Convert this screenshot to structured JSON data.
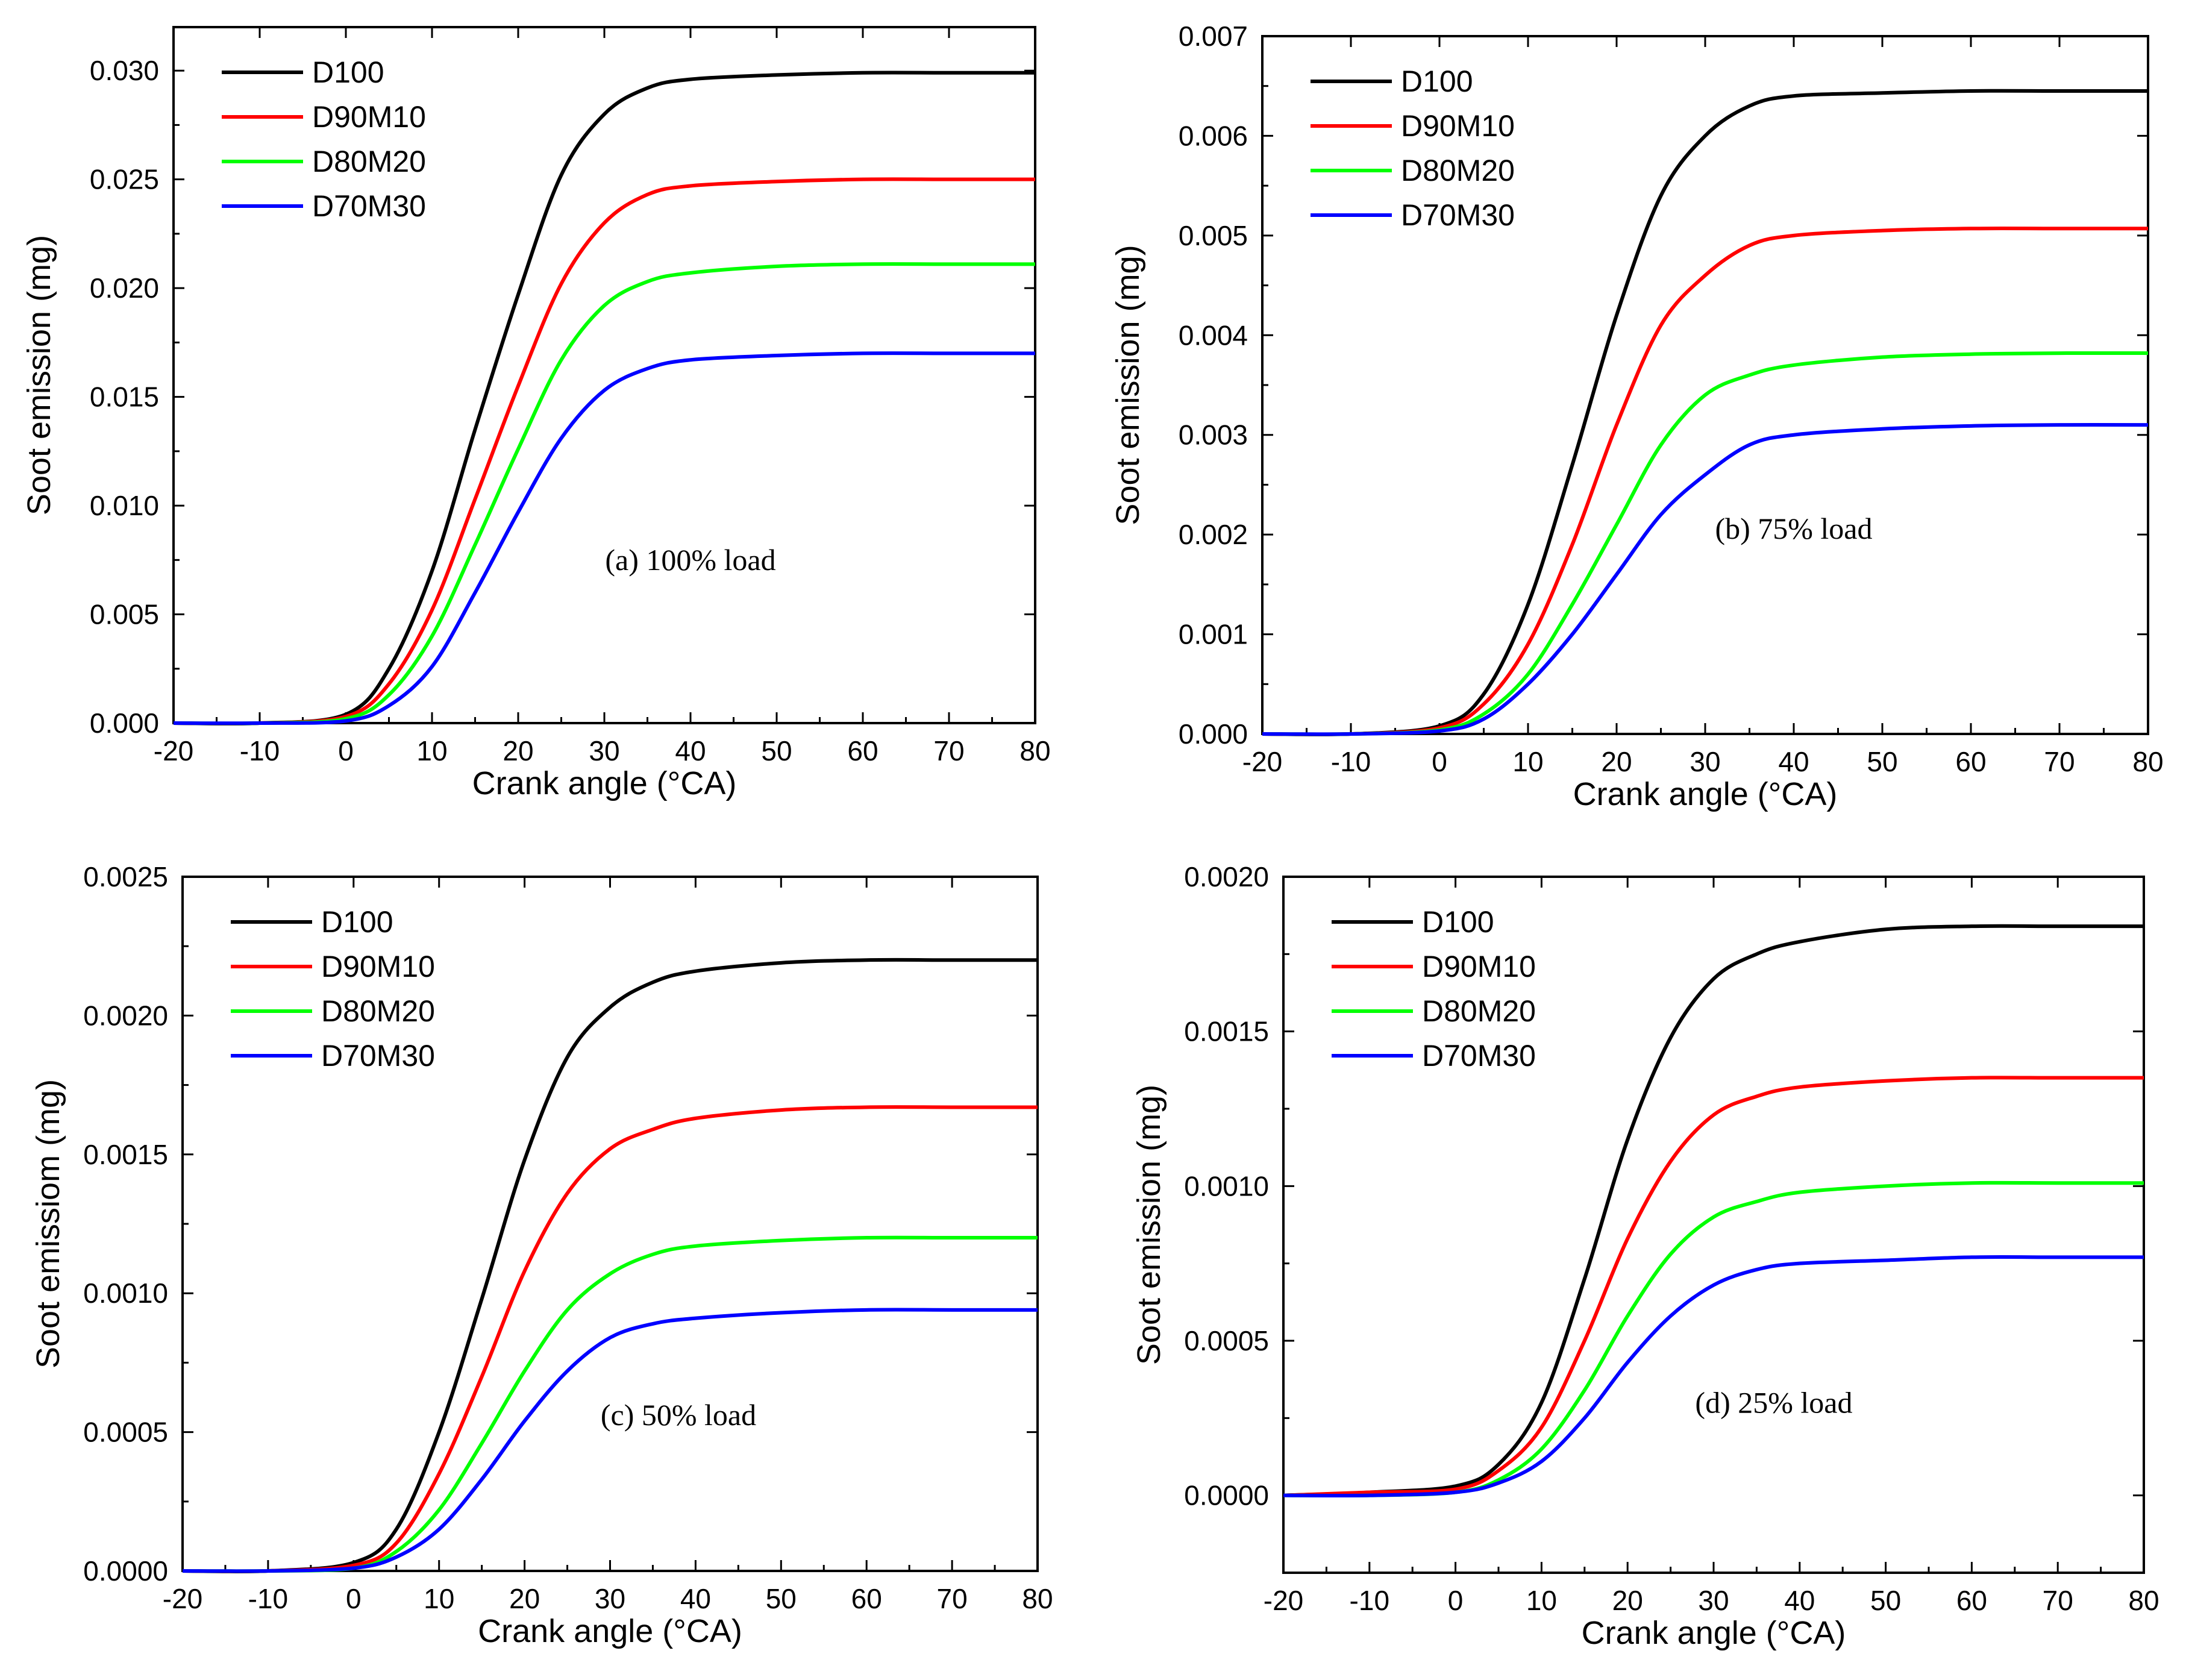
{
  "figure": {
    "panels": [
      {
        "id": "a",
        "annotation": "(a) 100% load",
        "xlabel": "Crank angle (°CA)",
        "ylabel": "Soot emission (mg)",
        "xlim": [
          -20,
          80
        ],
        "ylim": [
          0,
          0.032
        ],
        "xticks": [
          -20,
          -10,
          0,
          10,
          20,
          30,
          40,
          50,
          60,
          70,
          80
        ],
        "yticks": [
          0.0,
          0.005,
          0.01,
          0.015,
          0.02,
          0.025,
          0.03
        ],
        "ytick_decimals": 3,
        "series_final": [
          0.0299,
          0.025,
          0.0211,
          0.017
        ]
      },
      {
        "id": "b",
        "annotation": "(b) 75% load",
        "xlabel": "Crank angle (°CA)",
        "ylabel": "Soot emission (mg)",
        "xlim": [
          -20,
          80
        ],
        "ylim": [
          0,
          0.007
        ],
        "xticks": [
          -20,
          -10,
          0,
          10,
          20,
          30,
          40,
          50,
          60,
          70,
          80
        ],
        "yticks": [
          0.0,
          0.001,
          0.002,
          0.003,
          0.004,
          0.005,
          0.006,
          0.007
        ],
        "ytick_decimals": 3,
        "series_final": [
          0.00645,
          0.00507,
          0.00382,
          0.0031
        ]
      },
      {
        "id": "c",
        "annotation": "(c) 50% load",
        "xlabel": "Crank angle (°CA)",
        "ylabel": "Soot emissiom (mg)",
        "xlim": [
          -20,
          80
        ],
        "ylim": [
          0,
          0.0025
        ],
        "xticks": [
          -20,
          -10,
          0,
          10,
          20,
          30,
          40,
          50,
          60,
          70,
          80
        ],
        "yticks": [
          0.0,
          0.0005,
          0.001,
          0.0015,
          0.002,
          0.0025
        ],
        "ytick_decimals": 4,
        "series_final": [
          0.0022,
          0.00167,
          0.0012,
          0.00094
        ]
      },
      {
        "id": "d",
        "annotation": "(d) 25% load",
        "xlabel": "Crank angle (°CA)",
        "ylabel": "Soot emission (mg)",
        "xlim": [
          -20,
          80
        ],
        "ylim": [
          -0.00025,
          0.002
        ],
        "xticks": [
          -20,
          -10,
          0,
          10,
          20,
          30,
          40,
          50,
          60,
          70,
          80
        ],
        "yticks": [
          0.0,
          0.0005,
          0.001,
          0.0015,
          0.002
        ],
        "ytick_decimals": 4,
        "series_final": [
          0.00184,
          0.00135,
          0.00101,
          0.00077
        ]
      }
    ]
  },
  "chart_data": [
    {
      "type": "line",
      "x": [
        -20,
        -10,
        0,
        5,
        10,
        15,
        20,
        25,
        30,
        35,
        40,
        50,
        60,
        70,
        80
      ],
      "xlabel": "Crank angle (°CA)",
      "ylabel": "Soot emission (mg)",
      "xlim": [
        -20,
        80
      ],
      "ylim": [
        0,
        0.032
      ],
      "annotation": "(a) 100% load",
      "legend_position": "top-left",
      "series": [
        {
          "name": "D100",
          "color": "#000000",
          "values": [
            0,
            0,
            0.0004,
            0.0025,
            0.007,
            0.0135,
            0.0197,
            0.0252,
            0.028,
            0.0292,
            0.0296,
            0.0298,
            0.0299,
            0.0299,
            0.0299
          ]
        },
        {
          "name": "D90M10",
          "color": "#ff0000",
          "values": [
            0,
            0,
            0.0003,
            0.0018,
            0.0052,
            0.0103,
            0.0155,
            0.0202,
            0.023,
            0.0243,
            0.0247,
            0.0249,
            0.025,
            0.025,
            0.025
          ]
        },
        {
          "name": "D80M20",
          "color": "#00ff00",
          "values": [
            0,
            0,
            0.0002,
            0.0013,
            0.004,
            0.0082,
            0.0126,
            0.0167,
            0.0192,
            0.0203,
            0.0207,
            0.021,
            0.0211,
            0.0211,
            0.0211
          ]
        },
        {
          "name": "D70M30",
          "color": "#0000ff",
          "values": [
            0,
            0,
            0.0001,
            0.0008,
            0.0026,
            0.006,
            0.0097,
            0.0131,
            0.0153,
            0.0163,
            0.0167,
            0.0169,
            0.017,
            0.017,
            0.017
          ]
        }
      ]
    },
    {
      "type": "line",
      "x": [
        -20,
        -10,
        0,
        5,
        10,
        15,
        20,
        25,
        30,
        35,
        40,
        50,
        60,
        70,
        80
      ],
      "xlabel": "Crank angle (°CA)",
      "ylabel": "Soot emission (mg)",
      "xlim": [
        -20,
        80
      ],
      "ylim": [
        0,
        0.007
      ],
      "annotation": "(b) 75% load",
      "legend_position": "top-left",
      "series": [
        {
          "name": "D100",
          "color": "#000000",
          "values": [
            0,
            0,
            8e-05,
            0.0004,
            0.0013,
            0.0027,
            0.0042,
            0.0054,
            0.006,
            0.0063,
            0.0064,
            0.00643,
            0.00645,
            0.00645,
            0.00645
          ]
        },
        {
          "name": "D90M10",
          "color": "#ff0000",
          "values": [
            0,
            0,
            6e-05,
            0.0003,
            0.0009,
            0.0019,
            0.0031,
            0.0041,
            0.0046,
            0.0049,
            0.005,
            0.00505,
            0.00507,
            0.00507,
            0.00507
          ]
        },
        {
          "name": "D80M20",
          "color": "#00ff00",
          "values": [
            0,
            0,
            4e-05,
            0.0002,
            0.0006,
            0.0013,
            0.0021,
            0.0029,
            0.0034,
            0.0036,
            0.0037,
            0.00378,
            0.00381,
            0.00382,
            0.00382
          ]
        },
        {
          "name": "D70M30",
          "color": "#0000ff",
          "values": [
            0,
            0,
            3e-05,
            0.00015,
            0.0005,
            0.001,
            0.0016,
            0.0022,
            0.0026,
            0.0029,
            0.003,
            0.00306,
            0.00309,
            0.0031,
            0.0031
          ]
        }
      ]
    },
    {
      "type": "line",
      "x": [
        -20,
        -10,
        0,
        5,
        10,
        15,
        20,
        25,
        30,
        35,
        40,
        50,
        60,
        70,
        80
      ],
      "xlabel": "Crank angle (°CA)",
      "ylabel": "Soot emissiom (mg)",
      "xlim": [
        -20,
        80
      ],
      "ylim": [
        0,
        0.0025
      ],
      "annotation": "(c) 50% load",
      "legend_position": "top-left",
      "series": [
        {
          "name": "D100",
          "color": "#000000",
          "values": [
            0,
            0,
            3e-05,
            0.00015,
            0.0005,
            0.00098,
            0.00148,
            0.00185,
            0.00203,
            0.00212,
            0.00216,
            0.00219,
            0.0022,
            0.0022,
            0.0022
          ]
        },
        {
          "name": "D90M10",
          "color": "#ff0000",
          "values": [
            0,
            0,
            2e-05,
            0.0001,
            0.00035,
            0.0007,
            0.00108,
            0.00136,
            0.00152,
            0.00159,
            0.00163,
            0.00166,
            0.00167,
            0.00167,
            0.00167
          ]
        },
        {
          "name": "D80M20",
          "color": "#00ff00",
          "values": [
            0,
            0,
            1e-05,
            7e-05,
            0.00022,
            0.00046,
            0.00072,
            0.00094,
            0.00107,
            0.00114,
            0.00117,
            0.00119,
            0.0012,
            0.0012,
            0.0012
          ]
        },
        {
          "name": "D70M30",
          "color": "#0000ff",
          "values": [
            0,
            0,
            1e-05,
            5e-05,
            0.00015,
            0.00033,
            0.00054,
            0.00072,
            0.00084,
            0.00089,
            0.00091,
            0.00093,
            0.00094,
            0.00094,
            0.00094
          ]
        }
      ]
    },
    {
      "type": "line",
      "x": [
        -20,
        -10,
        0,
        5,
        10,
        15,
        20,
        25,
        30,
        35,
        40,
        50,
        60,
        70,
        80
      ],
      "xlabel": "Crank angle (°CA)",
      "ylabel": "Soot emission (mg)",
      "xlim": [
        -20,
        80
      ],
      "ylim": [
        -0.00025,
        0.002
      ],
      "annotation": "(d) 25% load",
      "legend_position": "top-left",
      "series": [
        {
          "name": "D100",
          "color": "#000000",
          "values": [
            0,
            1e-05,
            3e-05,
            0.0001,
            0.0003,
            0.0007,
            0.00115,
            0.00148,
            0.00167,
            0.00175,
            0.00179,
            0.00183,
            0.00184,
            0.00184,
            0.00184
          ]
        },
        {
          "name": "D90M10",
          "color": "#ff0000",
          "values": [
            0,
            1e-05,
            2e-05,
            8e-05,
            0.00022,
            0.0005,
            0.00083,
            0.00108,
            0.00123,
            0.00129,
            0.00132,
            0.00134,
            0.00135,
            0.00135,
            0.00135
          ]
        },
        {
          "name": "D80M20",
          "color": "#00ff00",
          "values": [
            0,
            0,
            1e-05,
            5e-05,
            0.00015,
            0.00034,
            0.00058,
            0.00078,
            0.0009,
            0.00095,
            0.00098,
            0.001,
            0.00101,
            0.00101,
            0.00101
          ]
        },
        {
          "name": "D70M30",
          "color": "#0000ff",
          "values": [
            0,
            0,
            1e-05,
            4e-05,
            0.00011,
            0.00025,
            0.00043,
            0.00058,
            0.00068,
            0.00073,
            0.00075,
            0.00076,
            0.00077,
            0.00077,
            0.00077
          ]
        }
      ]
    }
  ]
}
